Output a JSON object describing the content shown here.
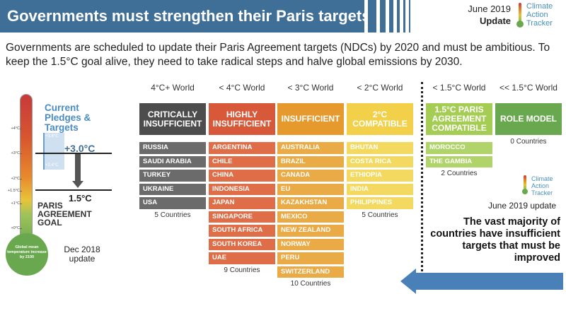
{
  "header": {
    "title": "Governments must strengthen their Paris targets",
    "date": "June 2019",
    "update": "Update",
    "logo_lines": [
      "Climate",
      "Action",
      "Tracker"
    ]
  },
  "intro": "Governments are scheduled to update their Paris Agreement targets (NDCs) by 2020 and must be ambitious. To keep the 1.5°C goal alive, they need to take radical steps and halve global emissions by 2030.",
  "thermometer": {
    "ticks": [
      "+4°C",
      "+3°C",
      "+2°C",
      "+1.5°C",
      "+1°C",
      "+0°C"
    ],
    "bulb_text": "Global mean temperature increase by 2100",
    "pledges_title": "Current Pledges & Targets",
    "range_high": "+3.8°C",
    "range_low": "+2.4°C",
    "pledge_value": "+3.0°C",
    "target_value": "1.5°C",
    "goal_label": "PARIS AGREEMENT GOAL",
    "dec_label": "Dec 2018 update"
  },
  "columns": [
    {
      "world": "4°C+ World",
      "category": "CRITICALLY INSUFFICIENT",
      "cat_color": "#4d4d4d",
      "row_color": "#6b6b6b",
      "countries": [
        "RUSSIA",
        "SAUDI ARABIA",
        "TURKEY",
        "UKRAINE",
        "USA"
      ],
      "count": "5 Countries"
    },
    {
      "world": "< 4°C World",
      "category": "HIGHLY INSUFFICIENT",
      "cat_color": "#d8593a",
      "row_color": "#df6e48",
      "countries": [
        "ARGENTINA",
        "CHILE",
        "CHINA",
        "INDONESIA",
        "JAPAN",
        "SINGAPORE",
        "SOUTH AFRICA",
        "SOUTH KOREA",
        "UAE"
      ],
      "count": "9 Countries"
    },
    {
      "world": "< 3°C World",
      "category": "INSUFFICIENT",
      "cat_color": "#e69a2e",
      "row_color": "#eaaa45",
      "countries": [
        "AUSTRALIA",
        "BRAZIL",
        "CANADA",
        "EU",
        "KAZAKHSTAN",
        "MEXICO",
        "NEW ZEALAND",
        "NORWAY",
        "PERU",
        "SWITZERLAND"
      ],
      "count": "10 Countries"
    },
    {
      "world": "< 2°C World",
      "category": "2°C COMPATIBLE",
      "cat_color": "#f2d04a",
      "row_color": "#f3d960",
      "countries": [
        "BHUTAN",
        "COSTA RICA",
        "ETHIOPIA",
        "INDIA",
        "PHILIPPINES"
      ],
      "count": "5 Countries"
    },
    {
      "world": "< 1.5°C World",
      "category": "1.5°C PARIS AGREEMENT COMPATIBLE",
      "cat_color": "#a5cd54",
      "row_color": "#b0d36a",
      "countries": [
        "MOROCCO",
        "THE GAMBIA"
      ],
      "count": "2 Countries"
    },
    {
      "world": "<< 1.5°C World",
      "category": "ROLE MODEL",
      "cat_color": "#6aa84f",
      "row_color": "#6aa84f",
      "countries": [],
      "count": "0 Countries"
    }
  ],
  "right_panel": {
    "logo_lines": [
      "Climate",
      "Action",
      "Tracker"
    ],
    "update": "June 2019 update",
    "message": "The vast majority of countries have insufficient targets that must be improved"
  }
}
